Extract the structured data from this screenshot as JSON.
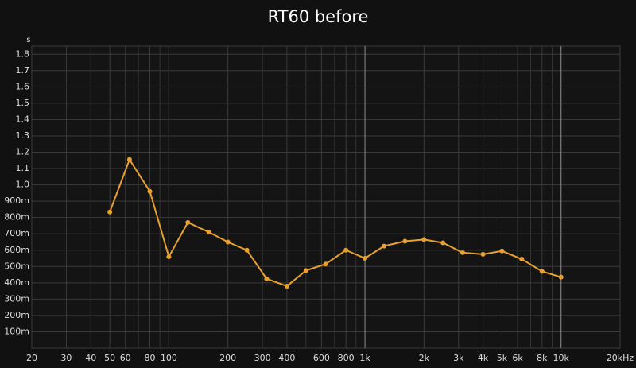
{
  "chart_data": {
    "type": "line",
    "title": "RT60 before",
    "y_label": "s",
    "x": [
      50,
      63,
      80,
      100,
      125,
      160,
      200,
      250,
      315,
      400,
      500,
      630,
      800,
      1000,
      1250,
      1600,
      2000,
      2500,
      3150,
      4000,
      5000,
      6300,
      8000,
      10000
    ],
    "series": [
      {
        "name": "RT60",
        "color": "#e8a030",
        "values": [
          0.834,
          1.155,
          0.96,
          0.56,
          0.77,
          0.71,
          0.65,
          0.6,
          0.425,
          0.38,
          0.475,
          0.515,
          0.6,
          0.55,
          0.625,
          0.655,
          0.665,
          0.645,
          0.585,
          0.575,
          0.595,
          0.545,
          0.47,
          0.435
        ]
      }
    ],
    "xscale": "log",
    "xlim": [
      20,
      20000
    ],
    "xticks": [
      20,
      30,
      40,
      50,
      60,
      80,
      100,
      200,
      300,
      400,
      600,
      800,
      {
        "value": 1000,
        "label": "1k"
      },
      {
        "value": 2000,
        "label": "2k"
      },
      {
        "value": 3000,
        "label": "3k"
      },
      {
        "value": 4000,
        "label": "4k"
      },
      {
        "value": 5000,
        "label": "5k"
      },
      {
        "value": 6000,
        "label": "6k"
      },
      {
        "value": 8000,
        "label": "8k"
      },
      {
        "value": 10000,
        "label": "10k"
      },
      {
        "value": 20000,
        "label": "20kHz"
      }
    ],
    "x_major_grid": [
      100,
      1000,
      10000
    ],
    "x_minor_grid": [
      70,
      90,
      500,
      700,
      900,
      7000,
      9000
    ],
    "ylim": [
      0,
      1.85
    ],
    "yticks": [
      {
        "value": 0.1,
        "label": "100m"
      },
      {
        "value": 0.2,
        "label": "200m"
      },
      {
        "value": 0.3,
        "label": "300m"
      },
      {
        "value": 0.4,
        "label": "400m"
      },
      {
        "value": 0.5,
        "label": "500m"
      },
      {
        "value": 0.6,
        "label": "600m"
      },
      {
        "value": 0.7,
        "label": "700m"
      },
      {
        "value": 0.8,
        "label": "800m"
      },
      {
        "value": 0.9,
        "label": "900m"
      },
      {
        "value": 1,
        "label": "1.0"
      },
      1.1,
      1.2,
      1.3,
      1.4,
      1.5,
      1.6,
      1.7,
      1.8
    ],
    "grid": true
  }
}
